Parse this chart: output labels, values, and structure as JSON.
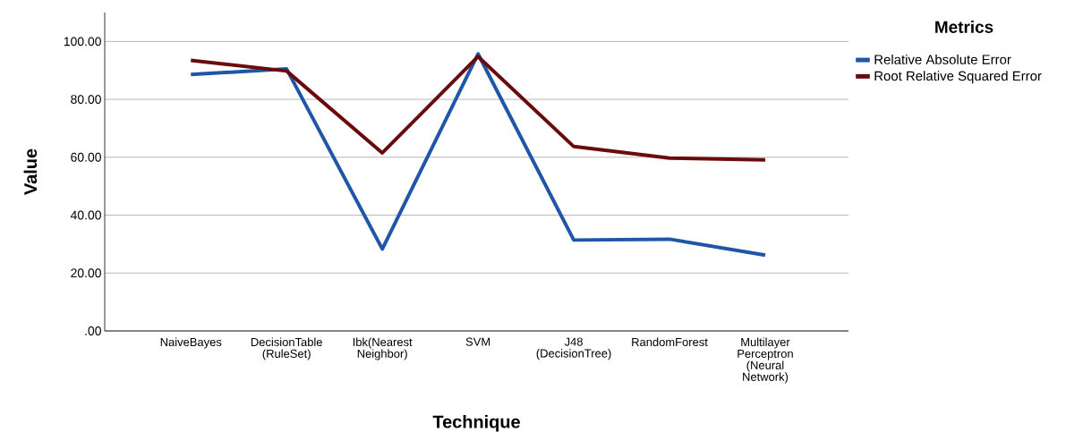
{
  "chart_data": {
    "type": "line",
    "xlabel": "Technique",
    "ylabel": "Value",
    "legend_title": "Metrics",
    "categories": [
      "NaiveBayes",
      "DecisionTable (RuleSet)",
      "Ibk(Nearest Neighbor)",
      "SVM",
      "J48 (DecisionTree)",
      "RandomForest",
      "Multilayer Perceptron (Neural Network)"
    ],
    "series": [
      {
        "name": "Relative Absolute Error",
        "color": "#1f56a6",
        "values": [
          88.6,
          90.5,
          28.3,
          95.7,
          31.4,
          31.7,
          26.2
        ]
      },
      {
        "name": "Root Relative Squared Error",
        "color": "#6b0a0a",
        "values": [
          93.5,
          89.8,
          61.5,
          94.8,
          63.7,
          59.7,
          59.1
        ]
      }
    ],
    "ylim": [
      0,
      110
    ],
    "yticks": [
      {
        "value": 0,
        "label": ".00"
      },
      {
        "value": 20,
        "label": "20.00"
      },
      {
        "value": 40,
        "label": "40.00"
      },
      {
        "value": 60,
        "label": "60.00"
      },
      {
        "value": 80,
        "label": "80.00"
      },
      {
        "value": 100,
        "label": "100.00"
      }
    ],
    "grid": "y",
    "legend": "top right",
    "marker": "none",
    "line_style": "solid"
  }
}
